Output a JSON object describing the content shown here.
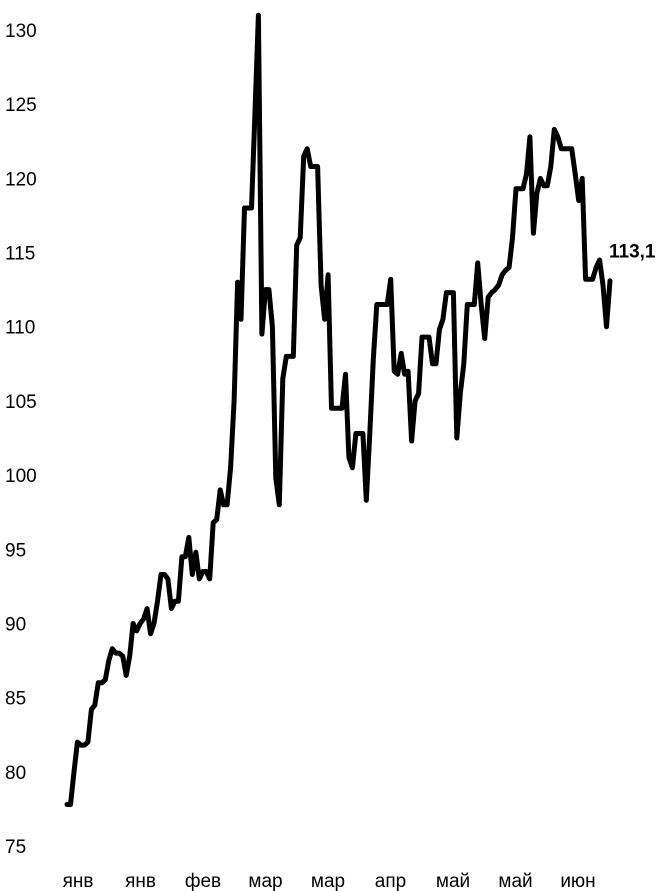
{
  "chart_data": {
    "type": "line",
    "title": "",
    "xlabel": "",
    "ylabel": "",
    "ylim": [
      75,
      130
    ],
    "y_ticks": [
      "130",
      "125",
      "120",
      "115",
      "110",
      "105",
      "100",
      "95",
      "90",
      "85",
      "80",
      "75"
    ],
    "x_ticks": [
      "янв",
      "янв",
      "фев",
      "мар",
      "мар",
      "апр",
      "май",
      "май",
      "июн"
    ],
    "grid": false,
    "legend": "none",
    "line_color": "#000000",
    "end_label": "113,1",
    "series": [
      {
        "values": [
          77.8,
          77.8,
          80.0,
          82.0,
          81.8,
          81.8,
          82.0,
          84.2,
          84.5,
          86.0,
          86.0,
          86.2,
          87.5,
          88.3,
          88.0,
          88.0,
          87.8,
          86.5,
          87.8,
          90.0,
          89.5,
          90.0,
          90.3,
          91.0,
          89.3,
          90.0,
          91.5,
          93.3,
          93.3,
          93.0,
          91.0,
          91.5,
          91.5,
          94.5,
          94.5,
          95.8,
          93.3,
          94.8,
          93.0,
          93.5,
          93.5,
          93.0,
          96.8,
          97.0,
          99.0,
          98.0,
          98.0,
          100.5,
          105.0,
          113.0,
          110.5,
          118.0,
          118.0,
          118.0,
          124.5,
          131.0,
          109.5,
          112.5,
          112.5,
          110.0,
          99.8,
          98.0,
          106.5,
          108.0,
          108.0,
          108.0,
          115.5,
          116.0,
          121.5,
          122.0,
          120.8,
          120.8,
          120.8,
          112.8,
          110.5,
          113.5,
          104.5,
          104.5,
          104.5,
          104.5,
          106.8,
          101.2,
          100.5,
          102.8,
          102.8,
          102.8,
          98.3,
          102.8,
          107.8,
          111.5,
          111.5,
          111.5,
          111.5,
          113.2,
          107.0,
          106.8,
          108.2,
          106.8,
          107.0,
          102.3,
          105.0,
          105.5,
          109.3,
          109.3,
          109.3,
          107.5,
          107.5,
          109.8,
          110.5,
          112.3,
          112.3,
          112.3,
          102.5,
          105.5,
          107.5,
          111.5,
          111.5,
          111.5,
          114.3,
          111.5,
          109.2,
          112.0,
          112.3,
          112.5,
          112.8,
          113.5,
          113.8,
          114.0,
          116.0,
          119.3,
          119.3,
          119.3,
          120.3,
          122.8,
          116.3,
          119.0,
          120.0,
          119.5,
          119.5,
          120.8,
          123.3,
          122.8,
          122.0,
          122.0,
          122.0,
          122.0,
          120.3,
          118.5,
          120.0,
          113.2,
          113.2,
          113.2,
          114.0,
          114.5,
          112.8,
          110.0,
          113.1
        ]
      }
    ]
  }
}
